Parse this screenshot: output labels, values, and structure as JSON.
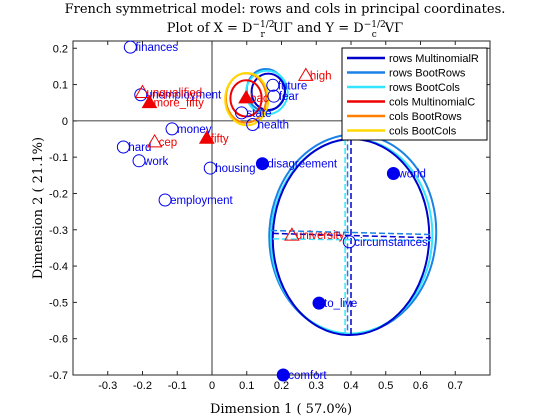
{
  "chart_data": {
    "type": "scatter",
    "title_line1": "French symmetrical model: rows and cols in principal coordinates.",
    "title_line2_prefix": "Plot of ",
    "title_line2_mid": " and ",
    "title_x_expr": "X = D",
    "title_x_sub": "r",
    "title_x_sup": "−1/2",
    "title_x_suffix": "UΓ",
    "title_y_expr": "Y = D",
    "title_y_sub": "c",
    "title_y_sup": "−1/2",
    "title_y_suffix": "VΓ",
    "xlabel": "Dimension  1 ( 57.0%)",
    "ylabel": "Dimension  2 ( 21.1%)",
    "xlim": [
      -0.4,
      0.8
    ],
    "ylim": [
      -0.7,
      0.22
    ],
    "xticks": [
      "-0.3",
      "-0.2",
      "-0.1",
      "0",
      "0.1",
      "0.2",
      "0.3",
      "0.4",
      "0.5",
      "0.6",
      "0.7"
    ],
    "xtick_values": [
      -0.3,
      -0.2,
      -0.1,
      0,
      0.1,
      0.2,
      0.3,
      0.4,
      0.5,
      0.6,
      0.7
    ],
    "yticks": [
      "0.2",
      "0.1",
      "0",
      "-0.1",
      "-0.2",
      "-0.3",
      "-0.4",
      "-0.5",
      "-0.6",
      "-0.7"
    ],
    "ytick_values": [
      0.2,
      0.1,
      0,
      -0.1,
      -0.2,
      -0.3,
      -0.4,
      -0.5,
      -0.6,
      -0.7
    ],
    "colors": {
      "rows": "#0000ee",
      "cols": "#ee0000"
    },
    "legend_position": "top-right",
    "legend": [
      {
        "label": "rows MultinomialR",
        "color": "#0000cc"
      },
      {
        "label": "rows BootRows",
        "color": "#1a82e6"
      },
      {
        "label": "rows BootCols",
        "color": "#33e5ff"
      },
      {
        "label": "cols MultinomialC",
        "color": "#ee0000"
      },
      {
        "label": "cols BootRows",
        "color": "#ff8000"
      },
      {
        "label": "cols BootCols",
        "color": "#ffd900"
      }
    ],
    "row_points": [
      {
        "label": "finances",
        "x": -0.235,
        "y": 0.203,
        "filled": false
      },
      {
        "label": "unemployment",
        "x": -0.205,
        "y": 0.072,
        "filled": false
      },
      {
        "label": "money",
        "x": -0.115,
        "y": -0.022,
        "filled": false
      },
      {
        "label": "hard",
        "x": -0.255,
        "y": -0.072,
        "filled": false
      },
      {
        "label": "work",
        "x": -0.21,
        "y": -0.11,
        "filled": false
      },
      {
        "label": "housing",
        "x": -0.005,
        "y": -0.13,
        "filled": false
      },
      {
        "label": "employment",
        "x": -0.135,
        "y": -0.218,
        "filled": false
      },
      {
        "label": "future",
        "x": 0.175,
        "y": 0.098,
        "filled": false
      },
      {
        "label": "fear",
        "x": 0.178,
        "y": 0.068,
        "filled": false
      },
      {
        "label": "health",
        "x": 0.117,
        "y": -0.01,
        "filled": false
      },
      {
        "label": "state",
        "x": 0.085,
        "y": 0.022,
        "filled": false
      },
      {
        "label": "disagreement",
        "x": 0.145,
        "y": -0.118,
        "filled": true
      },
      {
        "label": "world",
        "x": 0.522,
        "y": -0.145,
        "filled": true
      },
      {
        "label": "circumstances",
        "x": 0.395,
        "y": -0.333,
        "filled": false
      },
      {
        "label": "to_live",
        "x": 0.308,
        "y": -0.502,
        "filled": true
      },
      {
        "label": "comfort",
        "x": 0.205,
        "y": -0.7,
        "filled": true
      }
    ],
    "col_points": [
      {
        "label": "unqualified",
        "x": -0.2,
        "y": 0.078,
        "filled": false
      },
      {
        "label": "more_fifty",
        "x": -0.18,
        "y": 0.05,
        "filled": true
      },
      {
        "label": "cep",
        "x": -0.165,
        "y": -0.058,
        "filled": false
      },
      {
        "label": "fifty",
        "x": -0.015,
        "y": -0.048,
        "filled": true
      },
      {
        "label": "high",
        "x": 0.27,
        "y": 0.125,
        "filled": false
      },
      {
        "label": "university",
        "x": 0.23,
        "y": -0.315,
        "filled": false
      },
      {
        "label": "bac",
        "x": 0.098,
        "y": 0.063,
        "filled": true
      }
    ],
    "ellipses": [
      {
        "series": "rows BootRows",
        "cx": 0.405,
        "cy": -0.312,
        "rx": 0.24,
        "ry": 0.275,
        "rot": 4
      },
      {
        "series": "rows BootCols",
        "cx": 0.402,
        "cy": -0.318,
        "rx": 0.232,
        "ry": 0.268,
        "rot": 3
      },
      {
        "series": "rows MultinomialR",
        "cx": 0.4,
        "cy": -0.32,
        "rx": 0.225,
        "ry": 0.27,
        "rot": 2
      },
      {
        "series": "rows BootRows",
        "cx": 0.155,
        "cy": 0.085,
        "rx": 0.055,
        "ry": 0.058,
        "rot": 0
      },
      {
        "series": "rows BootCols",
        "cx": 0.158,
        "cy": 0.078,
        "rx": 0.06,
        "ry": 0.06,
        "rot": 0
      },
      {
        "series": "rows MultinomialR",
        "cx": 0.162,
        "cy": 0.08,
        "rx": 0.048,
        "ry": 0.05,
        "rot": 0
      },
      {
        "series": "cols BootRows",
        "cx": 0.098,
        "cy": 0.063,
        "rx": 0.058,
        "ry": 0.068,
        "rot": 0
      },
      {
        "series": "cols BootCols",
        "cx": 0.1,
        "cy": 0.06,
        "rx": 0.062,
        "ry": 0.072,
        "rot": 0
      },
      {
        "series": "cols MultinomialC",
        "cx": 0.098,
        "cy": 0.062,
        "rx": 0.045,
        "ry": 0.05,
        "rot": 0
      }
    ],
    "cross_lines": [
      {
        "series": "rows MultinomialR",
        "x1": 0.4,
        "y1": -0.05,
        "x2": 0.4,
        "y2": -0.595
      },
      {
        "series": "rows BootRows",
        "x1": 0.39,
        "y1": -0.04,
        "x2": 0.39,
        "y2": -0.585
      },
      {
        "series": "rows BootCols",
        "x1": 0.383,
        "y1": -0.05,
        "x2": 0.383,
        "y2": -0.59
      },
      {
        "series": "rows MultinomialR",
        "x1": 0.175,
        "y1": -0.31,
        "x2": 0.63,
        "y2": -0.322
      },
      {
        "series": "rows BootRows",
        "x1": 0.17,
        "y1": -0.302,
        "x2": 0.63,
        "y2": -0.313
      },
      {
        "series": "rows BootCols",
        "x1": 0.175,
        "y1": -0.325,
        "x2": 0.63,
        "y2": -0.33
      }
    ]
  }
}
